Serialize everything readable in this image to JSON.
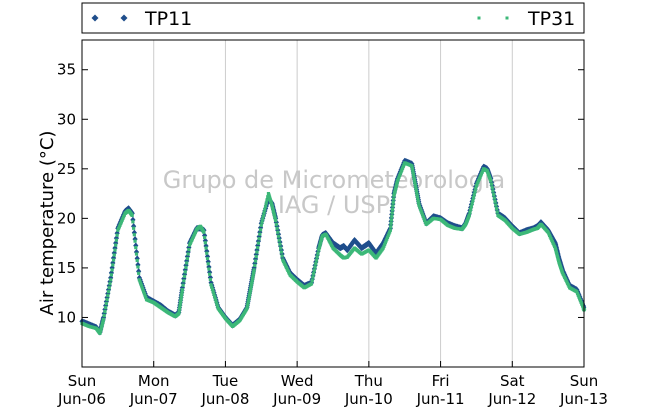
{
  "chart_data": {
    "type": "scatter",
    "title": "",
    "xlabel": "",
    "ylabel": "Air temperature (°C)",
    "watermark": [
      "Grupo de Micrometeorologia",
      "IAG / USP"
    ],
    "xlim": [
      0,
      7
    ],
    "ylim": [
      5,
      38
    ],
    "yticks": [
      10,
      15,
      20,
      25,
      30,
      35
    ],
    "xticks": [
      {
        "x": 0,
        "day": "Sun",
        "date": "Jun-06"
      },
      {
        "x": 1,
        "day": "Mon",
        "date": "Jun-07"
      },
      {
        "x": 2,
        "day": "Tue",
        "date": "Jun-08"
      },
      {
        "x": 3,
        "day": "Wed",
        "date": "Jun-09"
      },
      {
        "x": 4,
        "day": "Thu",
        "date": "Jun-10"
      },
      {
        "x": 5,
        "day": "Fri",
        "date": "Jun-11"
      },
      {
        "x": 6,
        "day": "Sat",
        "date": "Jun-12"
      },
      {
        "x": 7,
        "day": "Sun",
        "date": "Jun-13"
      }
    ],
    "grid": "vertical",
    "legend_position": "top",
    "series": [
      {
        "name": "TP11",
        "color": "#1f4e8c",
        "marker": "diamond",
        "x": [
          0.0,
          0.1,
          0.2,
          0.25,
          0.3,
          0.4,
          0.5,
          0.6,
          0.65,
          0.7,
          0.8,
          0.9,
          1.0,
          1.1,
          1.2,
          1.3,
          1.35,
          1.4,
          1.5,
          1.6,
          1.65,
          1.7,
          1.8,
          1.9,
          2.0,
          2.1,
          2.2,
          2.3,
          2.35,
          2.4,
          2.5,
          2.6,
          2.65,
          2.7,
          2.8,
          2.9,
          3.0,
          3.1,
          3.2,
          3.3,
          3.35,
          3.4,
          3.5,
          3.6,
          3.65,
          3.7,
          3.8,
          3.9,
          4.0,
          4.1,
          4.2,
          4.3,
          4.35,
          4.4,
          4.5,
          4.6,
          4.65,
          4.7,
          4.8,
          4.9,
          5.0,
          5.1,
          5.2,
          5.3,
          5.35,
          5.4,
          5.5,
          5.6,
          5.65,
          5.7,
          5.8,
          5.9,
          6.0,
          6.1,
          6.2,
          6.3,
          6.35,
          6.4,
          6.5,
          6.6,
          6.65,
          6.7,
          6.8,
          6.9,
          7.0
        ],
        "y": [
          9.6,
          9.3,
          9.0,
          8.5,
          10.0,
          14.0,
          19.0,
          20.7,
          21.0,
          20.5,
          14.0,
          12.0,
          11.6,
          11.2,
          10.6,
          10.2,
          10.5,
          13.0,
          17.5,
          19.0,
          19.0,
          18.8,
          13.5,
          11.0,
          10.0,
          9.2,
          9.8,
          11.0,
          13.0,
          15.0,
          19.5,
          22.0,
          21.5,
          20.0,
          16.0,
          14.5,
          13.8,
          13.2,
          13.5,
          17.0,
          18.3,
          18.5,
          17.5,
          17.0,
          17.2,
          16.8,
          17.8,
          17.0,
          17.5,
          16.5,
          17.5,
          19.0,
          22.5,
          24.0,
          25.8,
          25.5,
          23.5,
          21.5,
          19.5,
          20.2,
          20.0,
          19.5,
          19.2,
          19.0,
          19.5,
          20.5,
          23.5,
          25.2,
          25.0,
          24.0,
          20.5,
          20.0,
          19.2,
          18.5,
          18.8,
          19.0,
          19.2,
          19.6,
          18.8,
          17.5,
          16.0,
          14.8,
          13.2,
          12.8,
          11.0
        ]
      },
      {
        "name": "TP31",
        "color": "#3cb878",
        "marker": "square",
        "x": [
          0.0,
          0.1,
          0.2,
          0.25,
          0.3,
          0.4,
          0.5,
          0.6,
          0.65,
          0.7,
          0.8,
          0.9,
          1.0,
          1.1,
          1.2,
          1.3,
          1.35,
          1.4,
          1.5,
          1.6,
          1.65,
          1.7,
          1.8,
          1.9,
          2.0,
          2.1,
          2.2,
          2.3,
          2.35,
          2.4,
          2.5,
          2.6,
          2.65,
          2.7,
          2.8,
          2.9,
          3.0,
          3.1,
          3.2,
          3.3,
          3.35,
          3.4,
          3.5,
          3.6,
          3.65,
          3.7,
          3.8,
          3.9,
          4.0,
          4.1,
          4.2,
          4.3,
          4.35,
          4.4,
          4.5,
          4.6,
          4.65,
          4.7,
          4.8,
          4.9,
          5.0,
          5.1,
          5.2,
          5.3,
          5.35,
          5.4,
          5.5,
          5.6,
          5.65,
          5.7,
          5.8,
          5.9,
          6.0,
          6.1,
          6.2,
          6.3,
          6.35,
          6.4,
          6.5,
          6.6,
          6.65,
          6.7,
          6.8,
          6.9,
          7.0
        ],
        "y": [
          9.4,
          9.1,
          8.9,
          8.4,
          9.8,
          13.8,
          18.8,
          20.5,
          20.8,
          20.3,
          13.8,
          11.8,
          11.5,
          11.0,
          10.5,
          10.1,
          10.4,
          12.8,
          17.3,
          18.9,
          19.2,
          18.6,
          13.3,
          10.9,
          9.9,
          9.1,
          9.7,
          10.9,
          12.8,
          14.8,
          19.3,
          22.5,
          21.3,
          19.8,
          15.8,
          14.3,
          13.6,
          13.0,
          13.4,
          16.8,
          18.2,
          18.4,
          17.0,
          16.3,
          16.0,
          16.1,
          17.0,
          16.4,
          16.8,
          16.0,
          17.0,
          18.8,
          22.3,
          23.8,
          25.6,
          25.3,
          23.3,
          21.3,
          19.4,
          20.0,
          19.9,
          19.3,
          19.0,
          18.9,
          19.4,
          20.3,
          23.3,
          25.0,
          24.8,
          23.8,
          20.3,
          19.8,
          19.0,
          18.4,
          18.6,
          18.9,
          19.0,
          19.4,
          18.6,
          17.0,
          15.6,
          14.5,
          13.0,
          12.6,
          10.8
        ]
      }
    ]
  }
}
